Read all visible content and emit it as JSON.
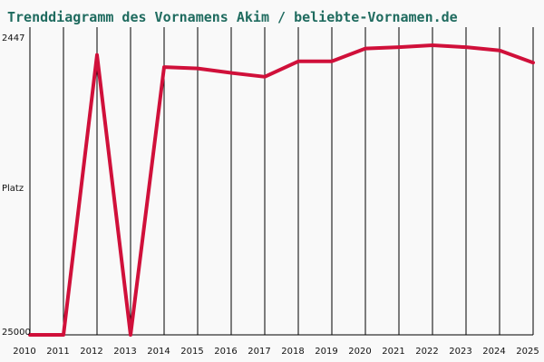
{
  "chart_data": {
    "type": "line",
    "title": "Trenddiagramm des Vornamens Akim / beliebte-Vornamen.de",
    "xlabel": "",
    "ylabel": "Platz",
    "y_axis": {
      "inverted": true,
      "top_label": "2447",
      "bottom_label": "25000",
      "range": [
        2447,
        25000
      ]
    },
    "x": [
      "2010",
      "2011",
      "2012",
      "2013",
      "2014",
      "2015",
      "2016",
      "2017",
      "2018",
      "2019",
      "2020",
      "2021",
      "2022",
      "2023",
      "2024",
      "2025"
    ],
    "series": [
      {
        "values": [
          25000,
          25000,
          3200,
          25000,
          4150,
          4250,
          4600,
          4900,
          3700,
          3700,
          2700,
          2600,
          2447,
          2600,
          2850,
          3800
        ]
      }
    ],
    "grid": {
      "vertical": true,
      "horizontal": false
    }
  },
  "colors": {
    "background": "#f9f9f9",
    "line": "#d0103a",
    "grid": "#000000",
    "title": "#1f6b5f",
    "axis": "#000000"
  }
}
